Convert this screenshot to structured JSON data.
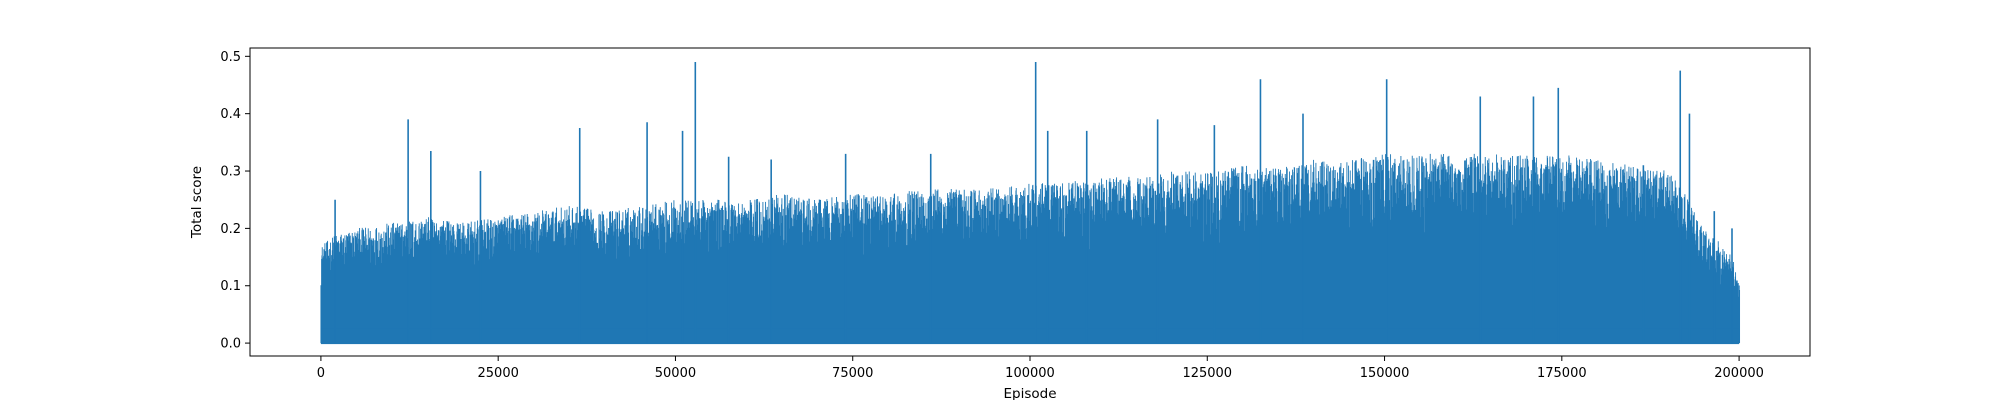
{
  "chart_data": {
    "type": "line",
    "title": "",
    "xlabel": "Episode",
    "ylabel": "Total score",
    "xlim": [
      -10000,
      210000
    ],
    "ylim": [
      -0.0225,
      0.5145
    ],
    "xticks": [
      0,
      25000,
      50000,
      75000,
      100000,
      125000,
      150000,
      175000,
      200000
    ],
    "xtick_labels": [
      "0",
      "25000",
      "50000",
      "75000",
      "100000",
      "125000",
      "150000",
      "175000",
      "200000"
    ],
    "yticks": [
      0.0,
      0.1,
      0.2,
      0.3,
      0.4,
      0.5
    ],
    "ytick_labels": [
      "0.0",
      "0.1",
      "0.2",
      "0.3",
      "0.4",
      "0.5"
    ],
    "grid": false,
    "legend": "none",
    "series": [
      {
        "color": "#1f77b4",
        "episodes": 200000,
        "baseline_min": 0.0,
        "envelope_x": [
          0,
          1000,
          2000,
          5000,
          10000,
          15000,
          20000,
          25000,
          30000,
          35000,
          40000,
          45000,
          50000,
          55000,
          60000,
          65000,
          70000,
          75000,
          80000,
          85000,
          90000,
          95000,
          100000,
          105000,
          110000,
          115000,
          120000,
          125000,
          130000,
          135000,
          140000,
          145000,
          150000,
          155000,
          160000,
          165000,
          170000,
          175000,
          180000,
          185000,
          190000,
          192000,
          195000,
          197000,
          199000,
          200000
        ],
        "envelope_upper": [
          0.17,
          0.18,
          0.19,
          0.2,
          0.21,
          0.22,
          0.21,
          0.22,
          0.23,
          0.24,
          0.23,
          0.24,
          0.25,
          0.25,
          0.25,
          0.26,
          0.25,
          0.26,
          0.26,
          0.27,
          0.27,
          0.27,
          0.28,
          0.28,
          0.29,
          0.29,
          0.3,
          0.3,
          0.31,
          0.31,
          0.32,
          0.32,
          0.33,
          0.33,
          0.33,
          0.33,
          0.33,
          0.33,
          0.32,
          0.31,
          0.3,
          0.27,
          0.2,
          0.18,
          0.15,
          0.1
        ],
        "spikes": [
          {
            "x": 2000,
            "y": 0.25
          },
          {
            "x": 12300,
            "y": 0.39
          },
          {
            "x": 15500,
            "y": 0.335
          },
          {
            "x": 22500,
            "y": 0.3
          },
          {
            "x": 36500,
            "y": 0.375
          },
          {
            "x": 46000,
            "y": 0.385
          },
          {
            "x": 51000,
            "y": 0.37
          },
          {
            "x": 52800,
            "y": 0.49
          },
          {
            "x": 57500,
            "y": 0.325
          },
          {
            "x": 63500,
            "y": 0.32
          },
          {
            "x": 74000,
            "y": 0.33
          },
          {
            "x": 86000,
            "y": 0.33
          },
          {
            "x": 100800,
            "y": 0.49
          },
          {
            "x": 102500,
            "y": 0.37
          },
          {
            "x": 108000,
            "y": 0.37
          },
          {
            "x": 118000,
            "y": 0.39
          },
          {
            "x": 126000,
            "y": 0.38
          },
          {
            "x": 132500,
            "y": 0.46
          },
          {
            "x": 138500,
            "y": 0.4
          },
          {
            "x": 150300,
            "y": 0.46
          },
          {
            "x": 163500,
            "y": 0.43
          },
          {
            "x": 171000,
            "y": 0.43
          },
          {
            "x": 174500,
            "y": 0.445
          },
          {
            "x": 186500,
            "y": 0.31
          },
          {
            "x": 191700,
            "y": 0.475
          },
          {
            "x": 193000,
            "y": 0.4
          },
          {
            "x": 196500,
            "y": 0.23
          },
          {
            "x": 199000,
            "y": 0.2
          }
        ]
      }
    ]
  }
}
